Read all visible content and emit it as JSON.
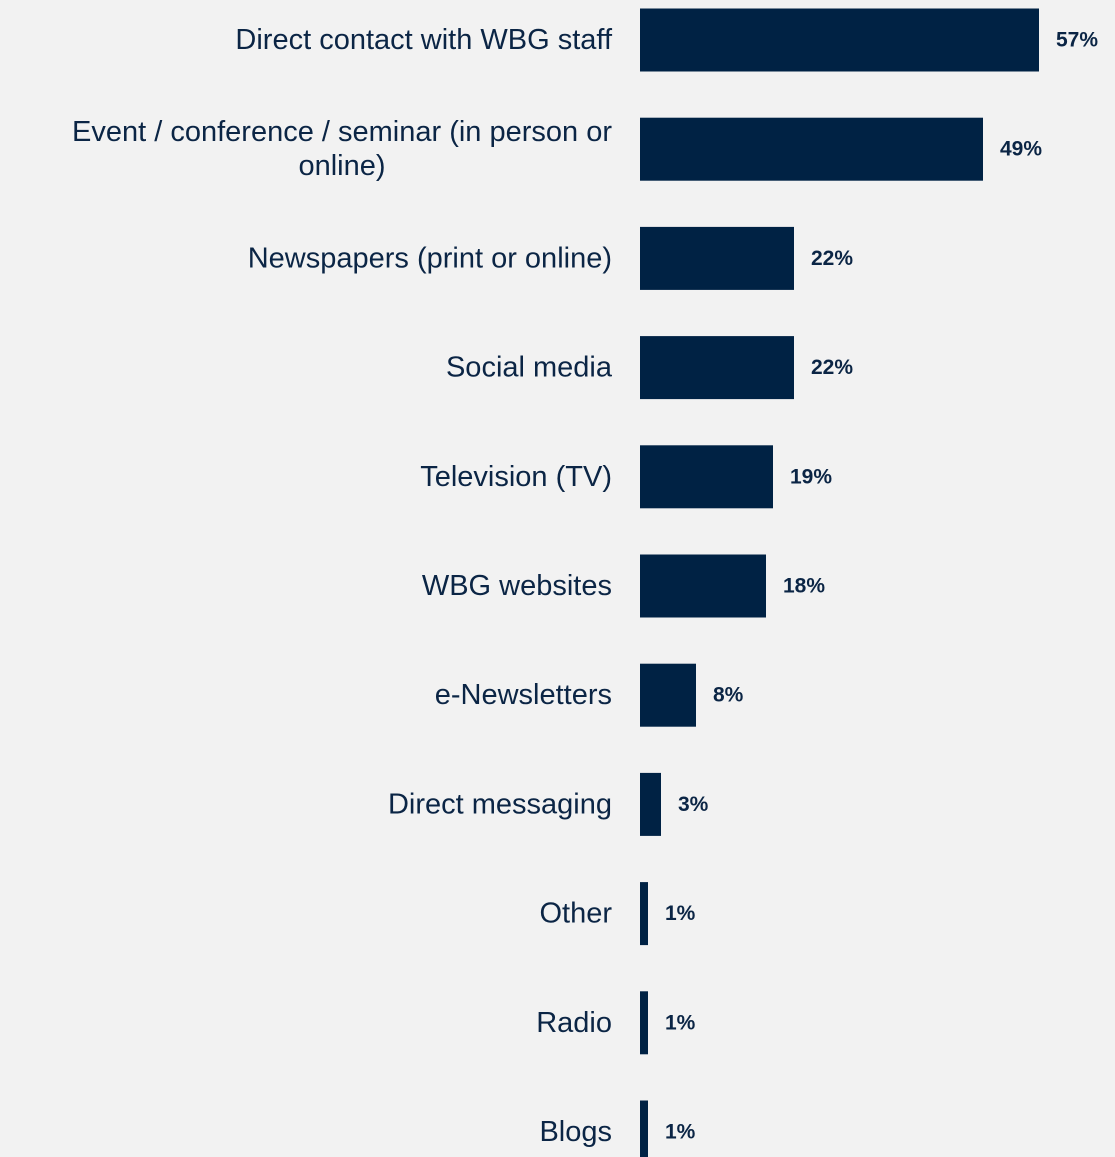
{
  "chart_data": {
    "type": "bar",
    "orientation": "horizontal",
    "categories": [
      "Direct contact with WBG staff",
      "Event / conference / seminar (in person or online)",
      "Newspapers (print or online)",
      "Social media",
      "Television (TV)",
      "WBG websites",
      "e-Newsletters",
      "Direct messaging",
      "Other",
      "Radio",
      "Blogs"
    ],
    "category_lines": [
      [
        "Direct contact with WBG staff"
      ],
      [
        "Event / conference / seminar (in person or",
        "online)"
      ],
      [
        "Newspapers (print or online)"
      ],
      [
        "Social media"
      ],
      [
        "Television (TV)"
      ],
      [
        "WBG websites"
      ],
      [
        "e-Newsletters"
      ],
      [
        "Direct messaging"
      ],
      [
        "Other"
      ],
      [
        "Radio"
      ],
      [
        "Blogs"
      ]
    ],
    "values": [
      57,
      49,
      22,
      22,
      19,
      18,
      8,
      3,
      1,
      1,
      1
    ],
    "data_labels": [
      "57%",
      "49%",
      "22%",
      "22%",
      "19%",
      "18%",
      "8%",
      "3%",
      "1%",
      "1%",
      "1%"
    ],
    "xlim": [
      0,
      100
    ],
    "grid": false,
    "legend": "none",
    "colors": {
      "bar": "#002244",
      "text": "#0b2545",
      "background": "#f2f2f2"
    }
  }
}
